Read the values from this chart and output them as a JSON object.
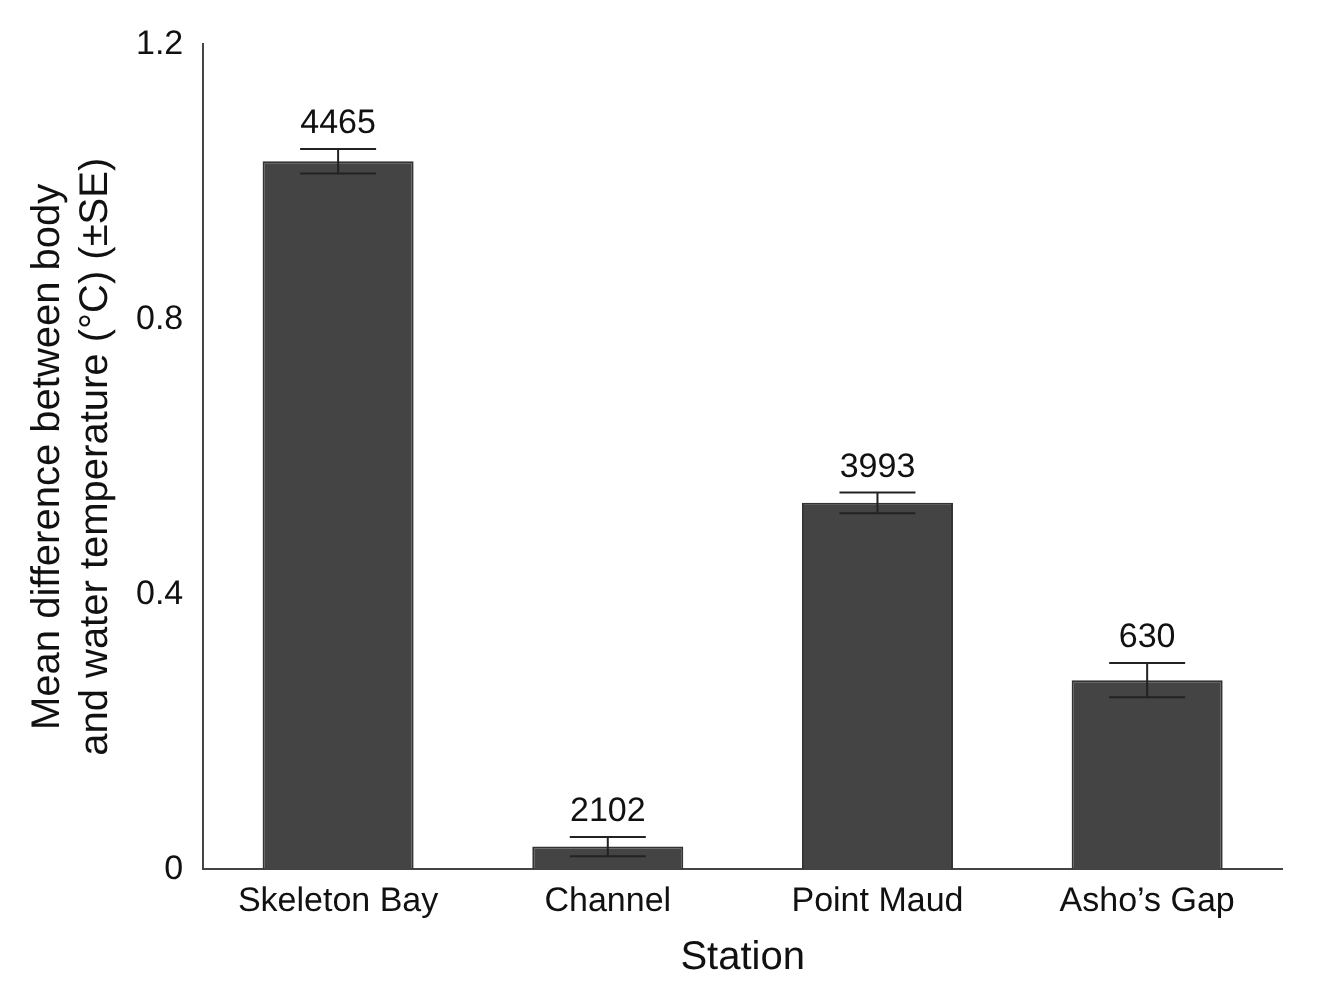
{
  "chart_data": {
    "type": "bar",
    "xlabel": "Station",
    "ylabel": "Mean difference between body and water temperature (°C) (±SE)",
    "categories": [
      "Skeleton Bay",
      "Channel",
      "Point Maud",
      "Asho’s Gap"
    ],
    "values": [
      1.03,
      0.033,
      0.533,
      0.275
    ],
    "errors": [
      0.018,
      0.014,
      0.015,
      0.025
    ],
    "annotations": [
      {
        "text": "4465",
        "x": "Skeleton Bay",
        "y": 1.048
      },
      {
        "text": "2102",
        "x": "Channel",
        "y": 0.047
      },
      {
        "text": "3993",
        "x": "Point Maud",
        "y": 0.548
      },
      {
        "text": "630",
        "x": "Asho’s Gap",
        "y": 0.3
      }
    ],
    "color": "#444444",
    "ylim": [
      0,
      1.2
    ],
    "yticks": [
      0,
      0.4,
      0.8,
      1.2
    ],
    "grid": false,
    "legend": false
  }
}
